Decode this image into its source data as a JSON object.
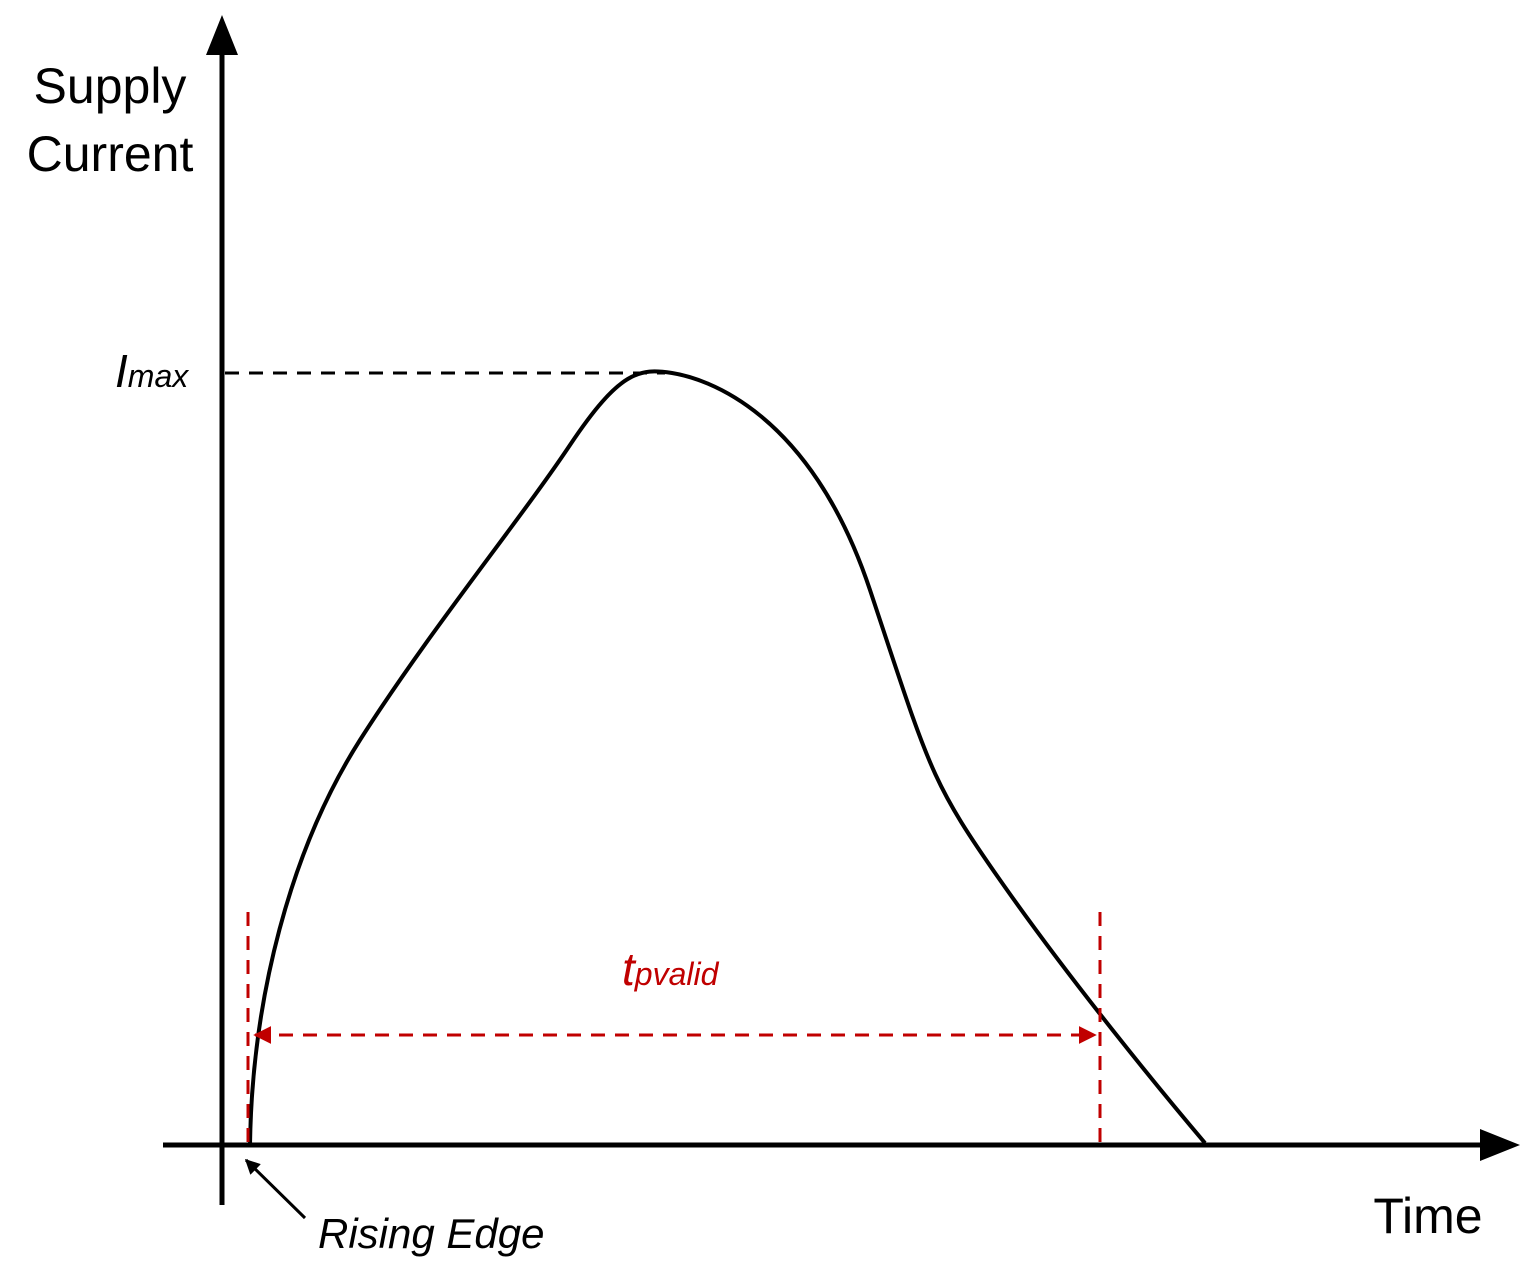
{
  "axes": {
    "y_label": [
      "Supply",
      "Current"
    ],
    "x_label": "Time"
  },
  "labels": {
    "imax": {
      "main": "I",
      "sub": "max"
    },
    "tpvalid": {
      "main": "t",
      "sub": "pvalid"
    },
    "rising_edge": "Rising Edge"
  }
}
